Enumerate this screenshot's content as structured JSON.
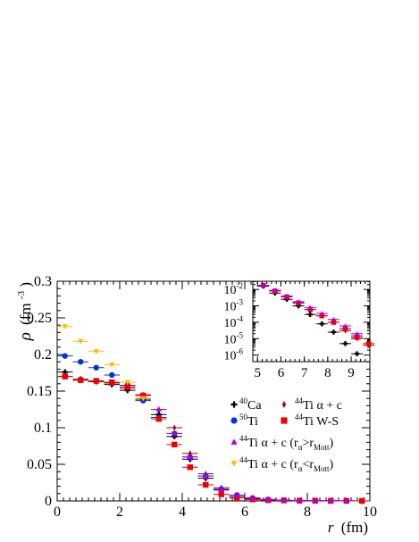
{
  "chart_data": [
    {
      "type": "scatter",
      "xlabel_var": "r",
      "xlabel_unit": "(fm)",
      "ylabel_var": "ρ",
      "ylabel_unit_base": "(fm",
      "ylabel_unit_exp": "-3",
      "ylabel_unit_close": ")",
      "xlim": [
        0,
        10
      ],
      "ylim": [
        0,
        0.3
      ],
      "x_ticks": [
        "0",
        "2",
        "4",
        "6",
        "8",
        "10"
      ],
      "y_ticks": [
        "0",
        "0.05",
        "0.1",
        "0.15",
        "0.2",
        "0.25",
        "0.3"
      ],
      "series": [
        {
          "key": "ca40",
          "marker": "cross",
          "color": "#000000",
          "legend": {
            "sup": "40",
            "text": "Ca"
          },
          "x": [
            0.25,
            0.75,
            1.25,
            1.75,
            2.25,
            2.75,
            3.25,
            3.75,
            4.25,
            4.75,
            5.25,
            5.75,
            6.25,
            6.75,
            7.25,
            7.75,
            8.25,
            8.75,
            9.25
          ],
          "y": [
            0.176,
            0.166,
            0.163,
            0.159,
            0.151,
            0.139,
            0.118,
            0.088,
            0.057,
            0.031,
            0.015,
            0.006,
            0.003,
            0.0015,
            0.0008,
            0.0004,
            0.0002,
            0.0001,
            5e-05
          ]
        },
        {
          "key": "ti50",
          "marker": "diamond",
          "color": "#b00000",
          "legend": {
            "sup": "50",
            "text": "Ti"
          },
          "x": [
            0.25,
            0.75,
            1.25,
            1.75,
            2.25,
            2.75,
            3.25,
            3.75,
            4.25,
            4.75,
            5.25,
            5.75,
            6.25,
            6.75,
            7.25,
            7.75,
            8.25,
            8.75,
            9.25,
            9.75
          ],
          "y": [
            0.17,
            0.165,
            0.163,
            0.161,
            0.154,
            0.145,
            0.125,
            0.1,
            0.065,
            0.037,
            0.018,
            0.008,
            0.004,
            0.002,
            0.001,
            0.0005,
            0.0003,
            0.0002,
            0.0001,
            5e-05
          ]
        },
        {
          "key": "ti44_ac",
          "marker": "circle",
          "color": "#0033dd",
          "legend": {
            "sup": "44",
            "text": "Ti α + c"
          },
          "x": [
            0.25,
            0.75,
            1.25,
            1.75,
            2.25,
            2.75,
            3.25,
            3.75,
            4.25,
            4.75,
            5.25,
            5.75,
            6.25,
            6.75,
            7.25,
            7.75,
            8.25,
            8.75,
            9.25
          ],
          "y": [
            0.198,
            0.19,
            0.182,
            0.172,
            0.158,
            0.137,
            0.114,
            0.092,
            0.06,
            0.034,
            0.016,
            0.008,
            0.004,
            0.002,
            0.001,
            0.0005,
            0.0003,
            0.0002,
            0.0001
          ]
        },
        {
          "key": "ti44_ws",
          "marker": "square",
          "color": "#ee0000",
          "legend": {
            "sup": "44",
            "text": "Ti W-S"
          },
          "x": [
            0.25,
            0.75,
            1.25,
            1.75,
            2.25,
            2.75,
            3.25,
            3.75,
            4.25,
            4.75,
            5.25,
            5.75,
            6.25,
            6.75,
            7.25,
            7.75,
            8.25,
            8.75,
            9.25,
            9.75
          ],
          "y": [
            0.17,
            0.165,
            0.164,
            0.162,
            0.156,
            0.144,
            0.112,
            0.077,
            0.046,
            0.022,
            0.009,
            0.004,
            0.002,
            0.001,
            0.0007,
            0.0004,
            0.0002,
            8e-05,
            4e-05,
            2e-05
          ]
        },
        {
          "key": "ti44_gt",
          "marker": "triangle-up",
          "color": "#aa00ee",
          "legend": {
            "sup": "44",
            "text": "Ti α + c (r",
            "sub1": "α",
            "mid": ">r",
            "sub2": "Mott",
            "end": ")"
          },
          "x": [
            3.25,
            3.75,
            4.25,
            4.75,
            5.25,
            5.75,
            6.25,
            6.75,
            7.25,
            7.75,
            8.25,
            8.75,
            9.25
          ],
          "y": [
            0.125,
            0.092,
            0.06,
            0.034,
            0.016,
            0.008,
            0.004,
            0.002,
            0.001,
            0.0006,
            0.0004,
            0.0003,
            0.0002
          ]
        },
        {
          "key": "ti44_lt",
          "marker": "triangle-down",
          "color": "#ffbb00",
          "legend": {
            "sup": "44",
            "text": "Ti α + c (r",
            "sub1": "α",
            "mid": "<r",
            "sub2": "Mott",
            "end": ")"
          },
          "x": [
            0.25,
            0.75,
            1.25,
            1.75,
            2.25,
            2.75
          ],
          "y": [
            0.238,
            0.218,
            0.204,
            0.186,
            0.162,
            0.14
          ]
        }
      ]
    },
    {
      "type": "scatter",
      "inset": true,
      "xlim": [
        4.8,
        9.8
      ],
      "ylim_log": [
        -6.4,
        -1.5
      ],
      "log_y": true,
      "x_ticks": [
        "5",
        "6",
        "7",
        "8",
        "9"
      ],
      "y_ticks": [
        {
          "base": "10",
          "exp": "-2"
        },
        {
          "base": "10",
          "exp": "-3"
        },
        {
          "base": "10",
          "exp": "-4"
        },
        {
          "base": "10",
          "exp": "-5"
        },
        {
          "base": "10",
          "exp": "-6"
        }
      ],
      "series": [
        {
          "key": "ca40",
          "marker": "cross",
          "color": "#000000",
          "x": [
            5.25,
            5.75,
            6.25,
            6.75,
            7.25,
            7.75,
            8.25,
            8.75,
            9.25
          ],
          "y": [
            0.016,
            0.006,
            0.0025,
            0.001,
            0.0003,
            8e-05,
            2.5e-05,
            5e-06,
            1.2e-06
          ]
        },
        {
          "key": "ti50",
          "marker": "diamond",
          "color": "#b00000",
          "x": [
            5.25,
            5.75,
            6.25,
            6.75,
            7.25,
            7.75,
            8.25,
            8.75,
            9.25,
            9.75
          ],
          "y": [
            0.018,
            0.008,
            0.0035,
            0.0016,
            0.0006,
            0.00025,
            0.0001,
            3e-05,
            1e-05,
            4e-06
          ]
        },
        {
          "key": "ti44_ac",
          "marker": "circle",
          "color": "#0033dd",
          "x": [
            5.25,
            5.75,
            6.25,
            6.75,
            7.25,
            7.75,
            8.25,
            8.75,
            9.25
          ],
          "y": [
            0.017,
            0.008,
            0.0035,
            0.0015,
            0.0006,
            0.00025,
            0.0001,
            4e-05,
            1.5e-05
          ]
        },
        {
          "key": "ti44_ws",
          "marker": "square",
          "color": "#ee0000",
          "x": [
            5.25,
            5.75,
            6.25,
            6.75,
            7.25,
            7.75,
            8.25,
            8.75,
            9.25,
            9.75
          ],
          "y": [
            0.018,
            0.008,
            0.0035,
            0.0015,
            0.0006,
            0.00025,
            0.0001,
            4e-05,
            1.2e-05,
            5e-06
          ]
        },
        {
          "key": "ti44_gt",
          "marker": "triangle-up",
          "color": "#aa00ee",
          "x": [
            5.25,
            5.75,
            6.25,
            6.75,
            7.25,
            7.75,
            8.25,
            8.75,
            9.25
          ],
          "y": [
            0.018,
            0.009,
            0.004,
            0.0018,
            0.0008,
            0.00035,
            0.00015,
            6e-05,
            2e-05
          ]
        }
      ]
    }
  ]
}
